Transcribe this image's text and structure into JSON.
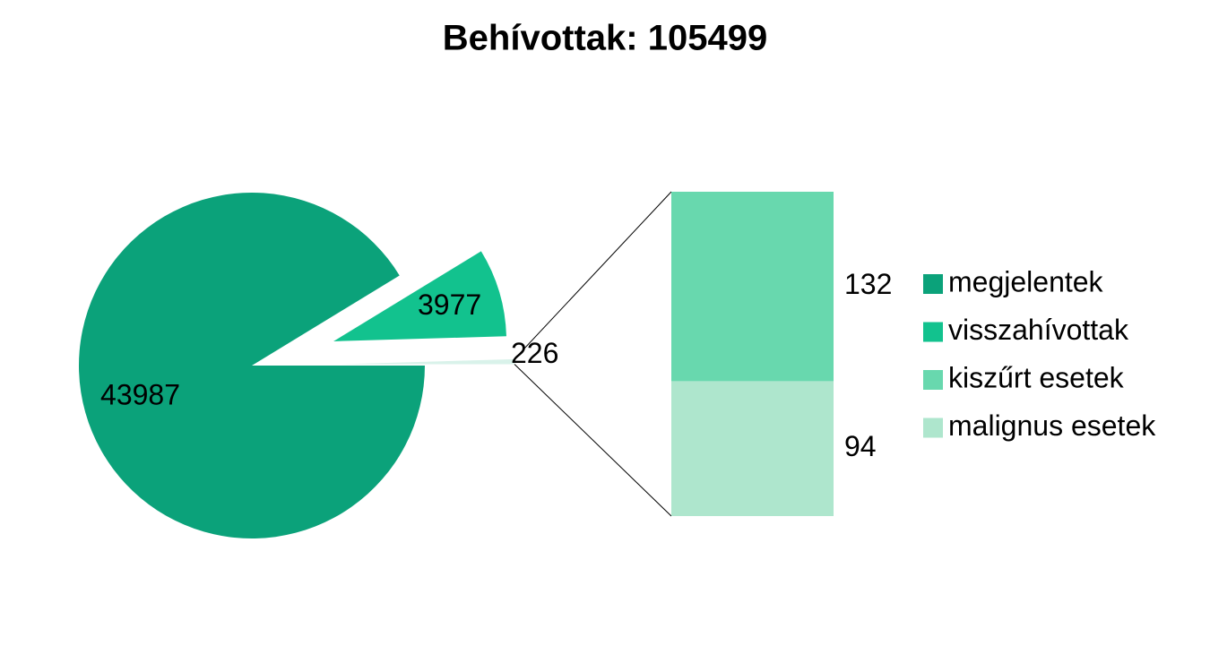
{
  "chart_data": {
    "type": "bar-of-pie",
    "title": "Behívottak: 105499",
    "slices": [
      {
        "name": "megjelentek",
        "color": "#0ba27a",
        "value": 43987
      },
      {
        "name": "visszahívottak",
        "color": "#12c28e",
        "value": 3977
      },
      {
        "color": "#d9f2ea",
        "value": 226
      }
    ],
    "bar_segments": [
      {
        "name": "kiszűrt esetek",
        "color": "#68d8ae",
        "value": 132
      },
      {
        "name": "malignus esetek",
        "color": "#aee6cd",
        "value": 94
      }
    ]
  }
}
